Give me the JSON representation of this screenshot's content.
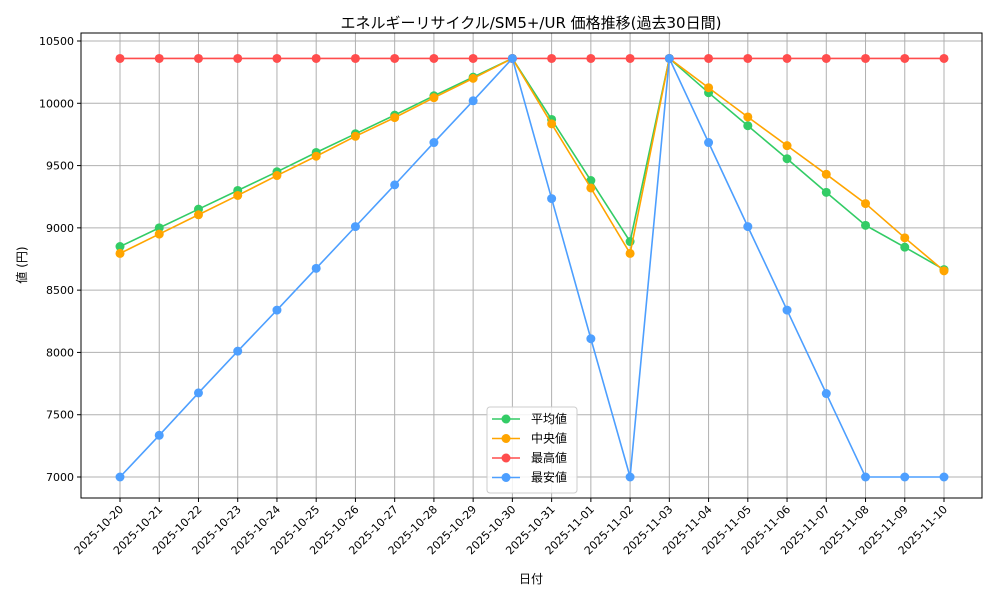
{
  "chart_data": {
    "type": "line",
    "title": "エネルギーリサイクル/SM5+/UR 価格推移(過去30日間)",
    "xlabel": "日付",
    "ylabel": "値 (円)",
    "ylim": [
      6830,
      10560
    ],
    "yticks": [
      7000,
      7500,
      8000,
      8500,
      9000,
      9500,
      10000,
      10500
    ],
    "grid": true,
    "legend_position": "lower center",
    "categories": [
      "2025-10-20",
      "2025-10-21",
      "2025-10-22",
      "2025-10-23",
      "2025-10-24",
      "2025-10-25",
      "2025-10-26",
      "2025-10-27",
      "2025-10-28",
      "2025-10-29",
      "2025-10-30",
      "2025-10-31",
      "2025-11-01",
      "2025-11-02",
      "2025-11-03",
      "2025-11-04",
      "2025-11-05",
      "2025-11-06",
      "2025-11-07",
      "2025-11-08",
      "2025-11-09",
      "2025-11-10"
    ],
    "series": [
      {
        "name": "平均値",
        "color": "#33cc66",
        "values": [
          8850,
          9000,
          9150,
          9300,
          9450,
          9605,
          9755,
          9905,
          10060,
          10210,
          10360,
          9870,
          9380,
          8890,
          10360,
          10085,
          9820,
          9555,
          9285,
          9020,
          8845,
          8665
        ]
      },
      {
        "name": "中央値",
        "color": "#ffa500",
        "values": [
          8795,
          8950,
          9105,
          9260,
          9420,
          9575,
          9735,
          9885,
          10045,
          10200,
          10360,
          9835,
          9320,
          8795,
          10360,
          10125,
          9890,
          9660,
          9430,
          9195,
          8920,
          8655
        ]
      },
      {
        "name": "最高値",
        "color": "#ff4d4d",
        "values": [
          10360,
          10360,
          10360,
          10360,
          10360,
          10360,
          10360,
          10360,
          10360,
          10360,
          10360,
          10360,
          10360,
          10360,
          10360,
          10360,
          10360,
          10360,
          10360,
          10360,
          10360,
          10360
        ]
      },
      {
        "name": "最安値",
        "color": "#4d9fff",
        "values": [
          7000,
          7335,
          7675,
          8010,
          8340,
          8675,
          9010,
          9345,
          9685,
          10020,
          10360,
          9235,
          8110,
          7000,
          10360,
          9685,
          9010,
          8340,
          7670,
          7000,
          7000,
          7000
        ]
      }
    ]
  }
}
